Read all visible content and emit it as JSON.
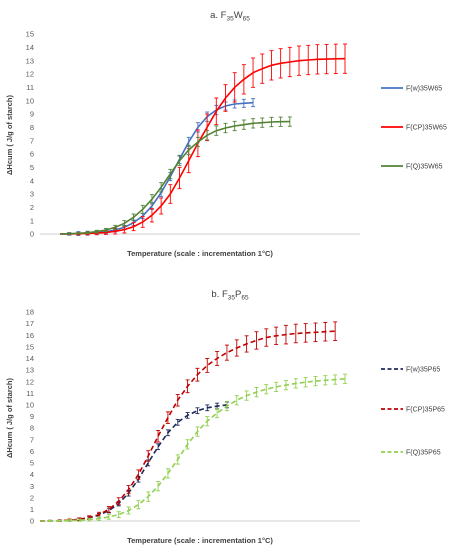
{
  "chart_data": [
    {
      "type": "line",
      "title": "a. F35W65",
      "title_parts": {
        "main": "a. F",
        "sub1": "35",
        "mid": "W",
        "sub2": "65"
      },
      "xlabel": "Temperature (scale : incrementation 1°C)",
      "ylabel": "ΔHcum ( J/g of starch)",
      "ylim": [
        0,
        15
      ],
      "yticks": [
        "0",
        "1",
        "2",
        "3",
        "4",
        "5",
        "6",
        "7",
        "8",
        "9",
        "10",
        "11",
        "12",
        "13",
        "14",
        "15"
      ],
      "line_style": "solid",
      "legend_position": "right",
      "series": [
        {
          "name": "F(w)35W65",
          "color": "#4472C4",
          "x": [
            0,
            3,
            6,
            9,
            12,
            15,
            18,
            21,
            24,
            27,
            30,
            33,
            36,
            39,
            42,
            45,
            48,
            51,
            54,
            57,
            60,
            63
          ],
          "y": [
            0,
            0.01,
            0.03,
            0.06,
            0.1,
            0.17,
            0.3,
            0.5,
            0.85,
            1.35,
            2.1,
            3.1,
            4.3,
            5.6,
            6.9,
            8.0,
            8.8,
            9.3,
            9.6,
            9.75,
            9.8,
            9.85
          ],
          "err": [
            0,
            0.1,
            0.15,
            0.15,
            0.15,
            0.15,
            0.15,
            0.15,
            0.2,
            0.2,
            0.25,
            0.3,
            0.3,
            0.3,
            0.35,
            0.35,
            0.35,
            0.35,
            0.3,
            0.3,
            0.3,
            0.3
          ]
        },
        {
          "name": "F(CP)35W65",
          "color": "#FF0000",
          "x": [
            0,
            3,
            6,
            9,
            12,
            15,
            18,
            21,
            24,
            27,
            30,
            33,
            36,
            39,
            42,
            45,
            48,
            51,
            54,
            57,
            60,
            63,
            66,
            69,
            72,
            75,
            78,
            81,
            84,
            87,
            90,
            93
          ],
          "y": [
            0,
            0.01,
            0.02,
            0.04,
            0.07,
            0.12,
            0.2,
            0.33,
            0.55,
            0.9,
            1.4,
            2.1,
            3.0,
            4.2,
            5.5,
            6.8,
            8.0,
            9.2,
            10.2,
            11.0,
            11.6,
            12.1,
            12.4,
            12.65,
            12.8,
            12.9,
            13.0,
            13.05,
            13.1,
            13.12,
            13.14,
            13.15
          ],
          "err": [
            0,
            0.05,
            0.08,
            0.1,
            0.12,
            0.15,
            0.2,
            0.25,
            0.3,
            0.4,
            0.5,
            0.6,
            0.7,
            0.8,
            0.9,
            1.0,
            1.0,
            1.0,
            1.0,
            1.1,
            1.1,
            1.1,
            1.1,
            1.1,
            1.1,
            1.1,
            1.1,
            1.1,
            1.1,
            1.1,
            1.1,
            1.1
          ]
        },
        {
          "name": "F(Q)35W65",
          "color": "#548235",
          "x": [
            0,
            3,
            6,
            9,
            12,
            15,
            18,
            21,
            24,
            27,
            30,
            33,
            36,
            39,
            42,
            45,
            48,
            51,
            54,
            57,
            60,
            63,
            66,
            69,
            72,
            75
          ],
          "y": [
            0,
            0.02,
            0.05,
            0.1,
            0.18,
            0.3,
            0.5,
            0.8,
            1.25,
            1.85,
            2.6,
            3.5,
            4.5,
            5.5,
            6.3,
            6.9,
            7.4,
            7.75,
            7.95,
            8.1,
            8.2,
            8.3,
            8.35,
            8.4,
            8.42,
            8.43
          ],
          "err": [
            0,
            0.05,
            0.05,
            0.08,
            0.1,
            0.12,
            0.15,
            0.2,
            0.25,
            0.3,
            0.35,
            0.35,
            0.35,
            0.35,
            0.35,
            0.35,
            0.35,
            0.35,
            0.35,
            0.35,
            0.35,
            0.35,
            0.35,
            0.35,
            0.35,
            0.35
          ]
        }
      ]
    },
    {
      "type": "line",
      "title": "b. F35P65",
      "title_parts": {
        "main": "b. F",
        "sub1": "35",
        "mid": "P",
        "sub2": "65"
      },
      "xlabel": "Temperature (scale : incrementation 1°C)",
      "ylabel": "ΔHcum ( J/g of starch)",
      "ylim": [
        0,
        18
      ],
      "yticks": [
        "0",
        "1",
        "2",
        "3",
        "4",
        "5",
        "6",
        "7",
        "8",
        "9",
        "10",
        "11",
        "12",
        "13",
        "14",
        "15",
        "16",
        "17",
        "18"
      ],
      "line_style": "dashed",
      "legend_position": "right",
      "series": [
        {
          "name": "F(w)35P65",
          "color": "#1F2A5C",
          "x": [
            0,
            3,
            6,
            9,
            12,
            15,
            18,
            21,
            24,
            27,
            30,
            33,
            36,
            39,
            42,
            45,
            48,
            51,
            54,
            57
          ],
          "y": [
            0,
            0.01,
            0.03,
            0.07,
            0.14,
            0.28,
            0.5,
            0.9,
            1.5,
            2.4,
            3.6,
            5.0,
            6.4,
            7.6,
            8.5,
            9.1,
            9.5,
            9.75,
            9.9,
            10.0
          ],
          "err": [
            0,
            0.05,
            0.05,
            0.08,
            0.1,
            0.12,
            0.15,
            0.2,
            0.2,
            0.25,
            0.25,
            0.25,
            0.25,
            0.25,
            0.25,
            0.25,
            0.25,
            0.25,
            0.25,
            0.25
          ]
        },
        {
          "name": "F(CP)35P65",
          "color": "#C00000",
          "x": [
            0,
            3,
            6,
            9,
            12,
            15,
            18,
            21,
            24,
            27,
            30,
            33,
            36,
            39,
            42,
            45,
            48,
            51,
            54,
            57,
            60,
            63,
            66,
            69,
            72,
            75,
            78,
            81,
            84,
            87,
            90
          ],
          "y": [
            0,
            0.01,
            0.03,
            0.07,
            0.15,
            0.3,
            0.55,
            1.0,
            1.7,
            2.7,
            4.0,
            5.6,
            7.3,
            8.9,
            10.4,
            11.6,
            12.6,
            13.4,
            14.0,
            14.5,
            14.9,
            15.25,
            15.55,
            15.8,
            15.95,
            16.05,
            16.15,
            16.2,
            16.25,
            16.3,
            16.35
          ],
          "err": [
            0,
            0.05,
            0.08,
            0.1,
            0.12,
            0.15,
            0.2,
            0.25,
            0.3,
            0.35,
            0.4,
            0.45,
            0.5,
            0.5,
            0.5,
            0.55,
            0.55,
            0.6,
            0.6,
            0.65,
            0.7,
            0.7,
            0.75,
            0.75,
            0.75,
            0.8,
            0.8,
            0.8,
            0.8,
            0.8,
            0.8
          ]
        },
        {
          "name": "F(Q)35P65",
          "color": "#92D050",
          "x": [
            0,
            3,
            6,
            9,
            12,
            15,
            18,
            21,
            24,
            27,
            30,
            33,
            36,
            39,
            42,
            45,
            48,
            51,
            54,
            57,
            60,
            63,
            66,
            69,
            72,
            75,
            78,
            81,
            84,
            87,
            90,
            93
          ],
          "y": [
            0,
            0.01,
            0.02,
            0.04,
            0.07,
            0.12,
            0.2,
            0.35,
            0.55,
            0.9,
            1.4,
            2.1,
            3.0,
            4.1,
            5.3,
            6.6,
            7.7,
            8.6,
            9.3,
            9.9,
            10.4,
            10.8,
            11.1,
            11.35,
            11.55,
            11.7,
            11.85,
            11.95,
            12.05,
            12.12,
            12.18,
            12.25
          ],
          "err": [
            0,
            0.05,
            0.05,
            0.08,
            0.1,
            0.12,
            0.15,
            0.2,
            0.25,
            0.3,
            0.35,
            0.4,
            0.4,
            0.4,
            0.4,
            0.4,
            0.4,
            0.4,
            0.4,
            0.4,
            0.4,
            0.4,
            0.4,
            0.4,
            0.4,
            0.4,
            0.4,
            0.4,
            0.4,
            0.4,
            0.4,
            0.4
          ]
        }
      ]
    }
  ]
}
